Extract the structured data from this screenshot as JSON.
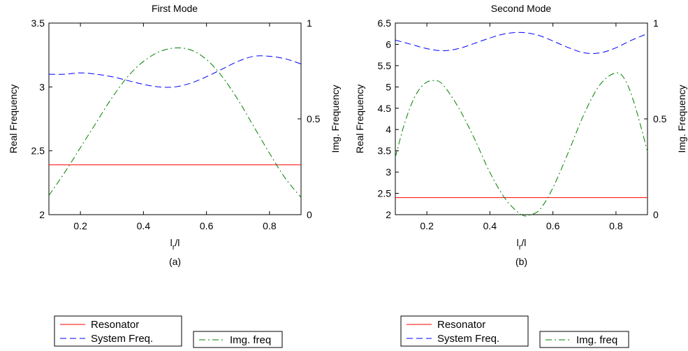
{
  "chart_data": [
    {
      "type": "line",
      "title": "First Mode",
      "xlabel_main": "l",
      "xlabel_sub": "r",
      "xlabel_tail": "/l",
      "caption": "(a)",
      "ylabel": "Real Frequency",
      "y2label": "Img. Frequency",
      "xlim": [
        0.1,
        0.9
      ],
      "ylim": [
        2,
        3.5
      ],
      "y2lim": [
        0,
        1
      ],
      "xticks": [
        "0.2",
        "0.4",
        "0.6",
        "0.8"
      ],
      "yticks": [
        "2",
        "2.5",
        "3",
        "3.5"
      ],
      "y2ticks": [
        "0",
        "0.5",
        "1"
      ],
      "series": [
        {
          "name": "Resonator",
          "axis": "left",
          "color": "#ff0000",
          "style": "solid",
          "x": [
            0.1,
            0.9
          ],
          "y": [
            2.39,
            2.39
          ]
        },
        {
          "name": "System Freq.",
          "axis": "left",
          "color": "#0000ff",
          "style": "dashed",
          "x": [
            0.1,
            0.15,
            0.2,
            0.25,
            0.3,
            0.35,
            0.4,
            0.45,
            0.5,
            0.55,
            0.6,
            0.65,
            0.7,
            0.75,
            0.8,
            0.85,
            0.9
          ],
          "y": [
            3.1,
            3.1,
            3.11,
            3.1,
            3.08,
            3.05,
            3.02,
            3.0,
            3.0,
            3.03,
            3.08,
            3.14,
            3.2,
            3.24,
            3.24,
            3.22,
            3.18
          ]
        },
        {
          "name": "Img. freq",
          "axis": "right",
          "color": "#008000",
          "style": "dashdot",
          "x": [
            0.1,
            0.15,
            0.2,
            0.25,
            0.3,
            0.35,
            0.4,
            0.45,
            0.5,
            0.55,
            0.6,
            0.65,
            0.7,
            0.75,
            0.8,
            0.85,
            0.9
          ],
          "y": [
            0.1,
            0.22,
            0.35,
            0.48,
            0.61,
            0.72,
            0.8,
            0.85,
            0.87,
            0.86,
            0.81,
            0.72,
            0.6,
            0.46,
            0.32,
            0.19,
            0.09
          ]
        }
      ],
      "legends": [
        {
          "entries": [
            "Resonator",
            "System Freq."
          ]
        },
        {
          "entries": [
            "Img. freq"
          ]
        }
      ]
    },
    {
      "type": "line",
      "title": "Second Mode",
      "xlabel_main": "l",
      "xlabel_sub": "r",
      "xlabel_tail": "/l",
      "caption": "(b)",
      "ylabel": "Real Frequency",
      "y2label": "Img. Frequency",
      "xlim": [
        0.1,
        0.9
      ],
      "ylim": [
        2,
        6.5
      ],
      "y2lim": [
        0,
        1
      ],
      "xticks": [
        "0.2",
        "0.4",
        "0.6",
        "0.8"
      ],
      "yticks": [
        "2",
        "2.5",
        "3",
        "3.5",
        "4",
        "4.5",
        "5",
        "5.5",
        "6",
        "6.5"
      ],
      "y2ticks": [
        "0",
        "0.5",
        "1"
      ],
      "series": [
        {
          "name": "Resonator",
          "axis": "left",
          "color": "#ff0000",
          "style": "solid",
          "x": [
            0.1,
            0.9
          ],
          "y": [
            2.4,
            2.4
          ]
        },
        {
          "name": "System Freq.",
          "axis": "left",
          "color": "#0000ff",
          "style": "dashed",
          "x": [
            0.1,
            0.15,
            0.2,
            0.25,
            0.3,
            0.35,
            0.4,
            0.45,
            0.5,
            0.55,
            0.6,
            0.65,
            0.7,
            0.75,
            0.8,
            0.85,
            0.9
          ],
          "y": [
            6.1,
            6.0,
            5.9,
            5.85,
            5.9,
            6.02,
            6.15,
            6.25,
            6.28,
            6.22,
            6.08,
            5.92,
            5.8,
            5.8,
            5.92,
            6.1,
            6.25
          ]
        },
        {
          "name": "Img. freq",
          "axis": "right",
          "color": "#008000",
          "style": "dashdot",
          "x": [
            0.1,
            0.13,
            0.16,
            0.19,
            0.22,
            0.25,
            0.3,
            0.35,
            0.4,
            0.45,
            0.5,
            0.53,
            0.56,
            0.6,
            0.65,
            0.7,
            0.75,
            0.8,
            0.83,
            0.86,
            0.9
          ],
          "y": [
            0.3,
            0.48,
            0.61,
            0.68,
            0.7,
            0.68,
            0.56,
            0.4,
            0.22,
            0.08,
            0.0,
            0.0,
            0.03,
            0.14,
            0.33,
            0.53,
            0.68,
            0.74,
            0.7,
            0.57,
            0.33
          ]
        }
      ],
      "legends": [
        {
          "entries": [
            "Resonator",
            "System Freq."
          ]
        },
        {
          "entries": [
            "Img. freq"
          ]
        }
      ]
    }
  ]
}
